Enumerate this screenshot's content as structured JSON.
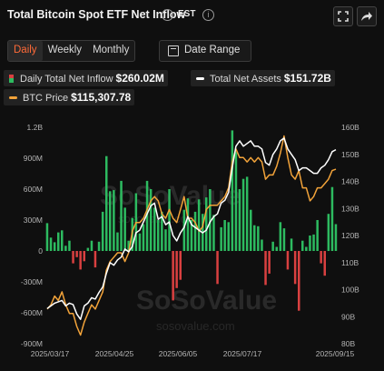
{
  "header": {
    "title": "Total Bitcoin Spot ETF Net Inflow",
    "timezone": "EST"
  },
  "toolbar": {
    "tabs": [
      {
        "label": "Daily",
        "active": true
      },
      {
        "label": "Weekly",
        "active": false
      },
      {
        "label": "Monthly",
        "active": false
      }
    ],
    "date_range_label": "Date Range"
  },
  "legend": {
    "inflow": {
      "label": "Daily Total Net Inflow",
      "value": "$260.02M"
    },
    "assets": {
      "label": "Total Net Assets",
      "value": "$151.72B"
    },
    "btc": {
      "label": "BTC Price",
      "value": "$115,307.78"
    }
  },
  "watermark": {
    "brand": "SoSoValue",
    "url": "sosovalue.com"
  },
  "colors": {
    "inflow_positive": "#2dbb60",
    "inflow_negative": "#d94040",
    "total_net_assets": "#ffffff",
    "btc_price": "#f2a33a",
    "active_tab": "#ff6a38"
  },
  "icons": {
    "fullscreen": "fullscreen-icon",
    "share": "share-arrow-icon",
    "info": "info-icon",
    "calendar": "calendar-icon"
  },
  "chart_data": {
    "type": "bar",
    "x_axis": {
      "tick_labels": [
        "2025/03/17",
        "2025/04/25",
        "2025/06/05",
        "2025/07/17",
        "2025/09/15"
      ],
      "range": [
        "2025-03-17",
        "2025-09-15"
      ]
    },
    "y_left": {
      "tick_labels": [
        "1.2B",
        "900M",
        "600M",
        "300M",
        "0",
        "-300M",
        "-600M",
        "-900M"
      ],
      "range": [
        -900,
        1200
      ],
      "unit": "M USD"
    },
    "y_right": {
      "tick_labels": [
        "160B",
        "150B",
        "140B",
        "130B",
        "120B",
        "110B",
        "100B",
        "90B",
        "80B"
      ],
      "range": [
        80,
        160
      ],
      "unit": "B USD"
    },
    "btc_price_scale": {
      "range": [
        75000,
        125000
      ]
    },
    "grid": false,
    "legend_position": "top-left",
    "x": [
      "2025-03-17",
      "2025-03-19",
      "2025-03-21",
      "2025-03-24",
      "2025-03-26",
      "2025-03-28",
      "2025-03-31",
      "2025-04-02",
      "2025-04-04",
      "2025-04-07",
      "2025-04-09",
      "2025-04-11",
      "2025-04-14",
      "2025-04-16",
      "2025-04-18",
      "2025-04-21",
      "2025-04-23",
      "2025-04-25",
      "2025-04-28",
      "2025-04-30",
      "2025-05-02",
      "2025-05-05",
      "2025-05-07",
      "2025-05-09",
      "2025-05-12",
      "2025-05-14",
      "2025-05-16",
      "2025-05-19",
      "2025-05-21",
      "2025-05-23",
      "2025-05-26",
      "2025-05-28",
      "2025-05-30",
      "2025-06-02",
      "2025-06-04",
      "2025-06-06",
      "2025-06-09",
      "2025-06-11",
      "2025-06-13",
      "2025-06-16",
      "2025-06-18",
      "2025-06-20",
      "2025-06-23",
      "2025-06-25",
      "2025-06-27",
      "2025-06-30",
      "2025-07-02",
      "2025-07-04",
      "2025-07-07",
      "2025-07-09",
      "2025-07-11",
      "2025-07-14",
      "2025-07-16",
      "2025-07-18",
      "2025-07-21",
      "2025-07-23",
      "2025-07-25",
      "2025-07-28",
      "2025-07-30",
      "2025-08-01",
      "2025-08-04",
      "2025-08-06",
      "2025-08-08",
      "2025-08-11",
      "2025-08-13",
      "2025-08-15",
      "2025-08-18",
      "2025-08-20",
      "2025-08-22",
      "2025-08-25",
      "2025-08-27",
      "2025-08-29",
      "2025-09-01",
      "2025-09-03",
      "2025-09-05",
      "2025-09-08",
      "2025-09-10",
      "2025-09-12",
      "2025-09-15"
    ],
    "series": [
      {
        "name": "Daily Total Net Inflow",
        "type": "bar",
        "axis": "left",
        "values": [
          270,
          130,
          85,
          180,
          200,
          50,
          100,
          -120,
          -60,
          -180,
          -100,
          30,
          100,
          -160,
          90,
          380,
          920,
          580,
          590,
          180,
          680,
          420,
          100,
          320,
          560,
          170,
          260,
          680,
          600,
          420,
          300,
          380,
          210,
          600,
          -480,
          -360,
          -280,
          400,
          510,
          300,
          380,
          500,
          360,
          520,
          600,
          350,
          -320,
          230,
          300,
          280,
          1170,
          960,
          600,
          700,
          720,
          400,
          250,
          240,
          110,
          -330,
          -220,
          90,
          40,
          280,
          220,
          -180,
          120,
          -320,
          -580,
          100,
          40,
          150,
          160,
          300,
          -120,
          -240,
          360,
          620,
          260
        ]
      },
      {
        "name": "Total Net Assets",
        "type": "line",
        "axis": "right",
        "values": [
          93,
          94,
          95,
          95.5,
          96,
          94,
          95,
          94.5,
          91,
          89,
          94,
          95,
          97,
          96.5,
          99,
          101,
          106,
          110,
          109,
          111,
          112,
          115,
          114,
          116,
          121,
          122,
          125,
          128,
          131,
          132,
          126,
          127,
          124,
          125,
          120,
          118,
          121,
          123,
          127,
          124,
          123,
          122,
          121,
          122,
          125,
          127,
          128,
          132,
          133,
          136,
          145,
          153,
          155,
          153,
          154,
          155,
          153,
          153,
          152,
          147,
          146,
          150,
          152,
          155,
          156,
          152,
          150,
          148,
          144,
          145,
          145,
          144,
          143,
          143,
          145,
          146,
          148,
          151,
          151.72
        ]
      },
      {
        "name": "BTC Price",
        "type": "line",
        "axis": "btc",
        "values": [
          83000,
          84000,
          86000,
          85000,
          87000,
          84000,
          82000,
          82000,
          79000,
          77000,
          80000,
          82000,
          84000,
          83000,
          85000,
          87000,
          92000,
          94000,
          95000,
          96000,
          96000,
          94000,
          96000,
          101000,
          103000,
          103000,
          104000,
          106000,
          108000,
          109000,
          108000,
          105000,
          104000,
          106000,
          104000,
          103000,
          106000,
          109000,
          104000,
          104000,
          103000,
          101000,
          102000,
          106000,
          107000,
          107000,
          107000,
          108000,
          109000,
          111000,
          117000,
          120000,
          118000,
          118000,
          117000,
          118000,
          117000,
          118000,
          117000,
          113000,
          114000,
          114000,
          116000,
          119000,
          123000,
          118000,
          114000,
          113000,
          115000,
          111000,
          111000,
          108000,
          109000,
          111000,
          111000,
          112000,
          113000,
          115000,
          115307.78
        ]
      }
    ]
  }
}
